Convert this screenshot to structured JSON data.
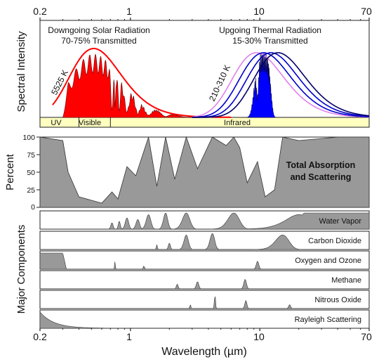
{
  "chart_data": {
    "type": "area",
    "x_scale": "log",
    "x_range": [
      0.2,
      70
    ],
    "x_ticks": [
      "0.2",
      "1",
      "10",
      "70"
    ],
    "xlabel": "Wavelength (µm)",
    "top_panel": {
      "ylabel": "Spectral Intensity",
      "solar_title": "Downgoing Solar Radiation",
      "solar_subtitle": "70-75% Transmitted",
      "thermal_title": "Upgoing Thermal Radiation",
      "thermal_subtitle": "15-30% Transmitted",
      "solar_curve_label": "5525 K",
      "thermal_curve_label": "210-310 K",
      "solar_peak_um": 0.52,
      "thermal_curve_peaks_um": [
        9.4,
        10.7,
        12.2,
        13.8
      ],
      "colors": {
        "solar": "#ff0000",
        "thermal": "#0000ff",
        "curve_violet": "#e080f0",
        "curve_blue": "#0000cc",
        "curve_navy": "#000066"
      },
      "bands": [
        {
          "label": "UV",
          "range": [
            0.2,
            0.4
          ]
        },
        {
          "label": "Visible",
          "range": [
            0.4,
            0.7
          ]
        },
        {
          "label": "Infrared",
          "range": [
            0.7,
            70
          ]
        }
      ],
      "band_color": "#ffffc0"
    },
    "total_panel": {
      "ylabel": "Percent",
      "y_range": [
        0,
        100
      ],
      "y_ticks": [
        "0",
        "25",
        "50",
        "75",
        "100"
      ],
      "title_line1": "Total Absorption",
      "title_line2": "and Scattering",
      "fill_color": "#999999",
      "series": [
        {
          "x": [
            0.2,
            0.3,
            0.33,
            0.4,
            0.6,
            0.72,
            0.8,
            0.94,
            1.1,
            1.38,
            1.6,
            1.87,
            2.2,
            2.7,
            3.3,
            4.3,
            5.5,
            6.3,
            7,
            8,
            9.6,
            11,
            13,
            15,
            20,
            40,
            70
          ],
          "y": [
            100,
            95,
            50,
            15,
            6,
            22,
            12,
            58,
            45,
            100,
            30,
            100,
            40,
            100,
            55,
            100,
            88,
            100,
            85,
            35,
            65,
            15,
            25,
            100,
            95,
            100,
            100
          ]
        }
      ]
    },
    "components_label": "Major Components",
    "components": [
      {
        "name": "Water Vapor",
        "peaks_um": [
          0.72,
          0.82,
          0.94,
          1.14,
          1.38,
          1.87,
          2.7,
          6.3,
          20
        ]
      },
      {
        "name": "Carbon Dioxide",
        "peaks_um": [
          1.6,
          2.0,
          2.7,
          4.3,
          15
        ]
      },
      {
        "name": "Oxygen and Ozone",
        "peaks_um": [
          0.25,
          0.76,
          1.27,
          9.6
        ]
      },
      {
        "name": "Methane",
        "peaks_um": [
          2.3,
          3.3,
          7.7
        ]
      },
      {
        "name": "Nitrous Oxide",
        "peaks_um": [
          2.9,
          4.5,
          7.8,
          17
        ]
      },
      {
        "name": "Rayleigh Scattering",
        "peaks_um": [
          0.2
        ]
      }
    ]
  }
}
